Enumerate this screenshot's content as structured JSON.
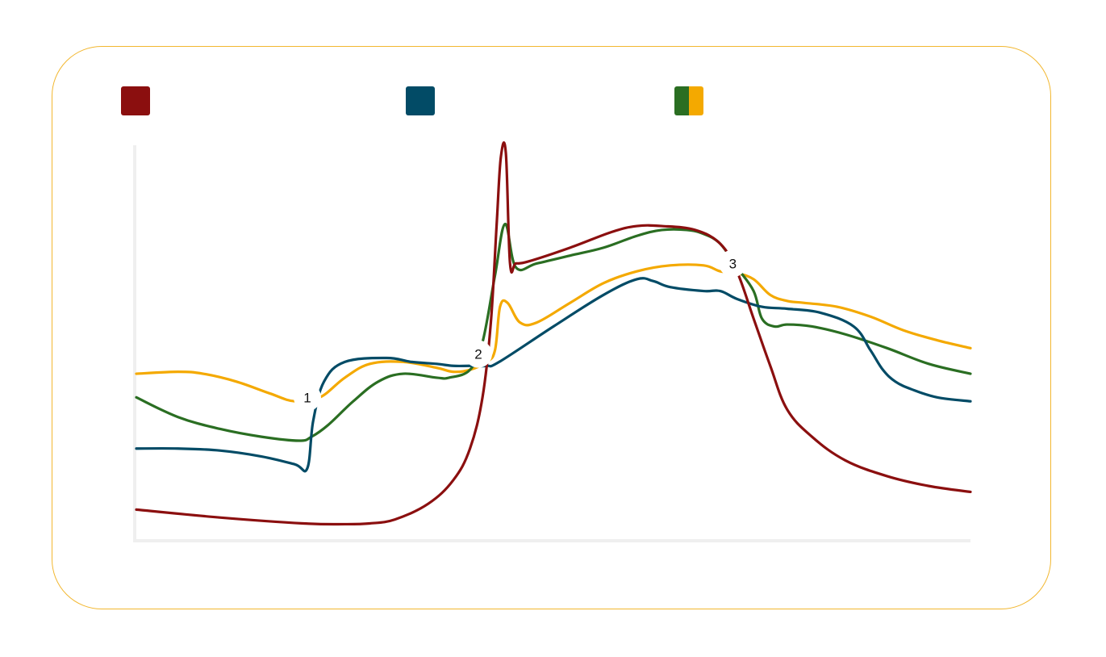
{
  "chart_data": {
    "type": "line",
    "title": "",
    "xlabel": "",
    "ylabel": "",
    "grid": false,
    "legend": "top",
    "xlim": [
      0,
      100
    ],
    "ylim": [
      0,
      100
    ],
    "legend_items": [
      {
        "name": "",
        "colors": [
          "#8b0f0f"
        ]
      },
      {
        "name": "",
        "colors": [
          "#024b66"
        ]
      },
      {
        "name": "",
        "colors": [
          "#2a6e22",
          "#f4a900"
        ]
      }
    ],
    "markers": [
      {
        "label": "1",
        "x": 20.5,
        "y": 36
      },
      {
        "label": "2",
        "x": 41,
        "y": 47
      },
      {
        "label": "3",
        "x": 71.5,
        "y": 70
      }
    ],
    "series": [
      {
        "color": "#8b0f0f",
        "x": [
          0,
          10,
          20,
          25,
          28,
          31,
          35,
          38,
          40,
          41.5,
          42.5,
          43.2,
          43.7,
          44.3,
          44.8,
          45.5,
          47,
          52,
          57,
          60,
          63,
          67,
          70,
          72,
          74,
          76,
          78,
          81,
          85,
          90,
          95,
          100
        ],
        "y": [
          7.5,
          5.5,
          4,
          3.8,
          4,
          5,
          9,
          15,
          23,
          36,
          55,
          80,
          97,
          98,
          70,
          70,
          70.5,
          74,
          78,
          79.5,
          79.5,
          78.5,
          75,
          68,
          56,
          44,
          33,
          26,
          20,
          16,
          13.5,
          12
        ]
      },
      {
        "color": "#024b66",
        "x": [
          0,
          5,
          10,
          15,
          19,
          20.5,
          21.2,
          22.5,
          25,
          30,
          33,
          36,
          38,
          40,
          42,
          43.5,
          50,
          56,
          60,
          62,
          64,
          68,
          70,
          72,
          75,
          78,
          82,
          86,
          88,
          89.5,
          91,
          93,
          96,
          100
        ],
        "y": [
          23,
          23,
          22.5,
          21,
          19,
          18,
          30,
          40,
          45,
          46,
          45,
          44.5,
          44,
          44,
          44,
          45,
          54,
          62,
          66,
          65.5,
          64,
          63,
          63,
          61,
          59,
          58.5,
          57.5,
          54,
          48,
          43,
          40,
          38,
          36,
          35
        ]
      },
      {
        "color": "#2a6e22",
        "x": [
          0,
          5,
          10,
          15,
          19.5,
          21,
          23,
          26,
          29,
          32,
          36,
          37.5,
          40,
          41.5,
          43,
          44.2,
          45.5,
          48,
          52,
          56,
          60,
          63,
          66,
          68,
          70,
          72,
          74,
          75,
          76.5,
          78,
          81,
          85,
          90,
          95,
          100
        ],
        "y": [
          36,
          31,
          28,
          26,
          25,
          26,
          29,
          35,
          40,
          42,
          41,
          41,
          43,
          50,
          67,
          80,
          69,
          70,
          72,
          74,
          77,
          78.5,
          78.5,
          77.5,
          75,
          69,
          63,
          56,
          54,
          54.5,
          54,
          52,
          48.5,
          44.5,
          42
        ]
      },
      {
        "color": "#f4a900",
        "x": [
          0,
          5,
          8,
          12,
          16,
          19,
          22,
          25,
          28,
          32,
          36,
          38,
          40,
          42,
          43,
          43.6,
          44.5,
          46,
          48,
          52,
          56,
          60,
          64,
          68,
          70,
          72,
          74,
          76,
          78,
          80,
          84,
          88,
          92,
          96,
          100
        ],
        "y": [
          42,
          42.5,
          42,
          40,
          37,
          35,
          36,
          41,
          44.5,
          45,
          43.5,
          42.5,
          43,
          45,
          48,
          59,
          60,
          55,
          55,
          60,
          65,
          68,
          69.5,
          69.5,
          68,
          67.5,
          66,
          62,
          60.5,
          60,
          59,
          56.5,
          53,
          50.5,
          48.5
        ]
      }
    ]
  }
}
